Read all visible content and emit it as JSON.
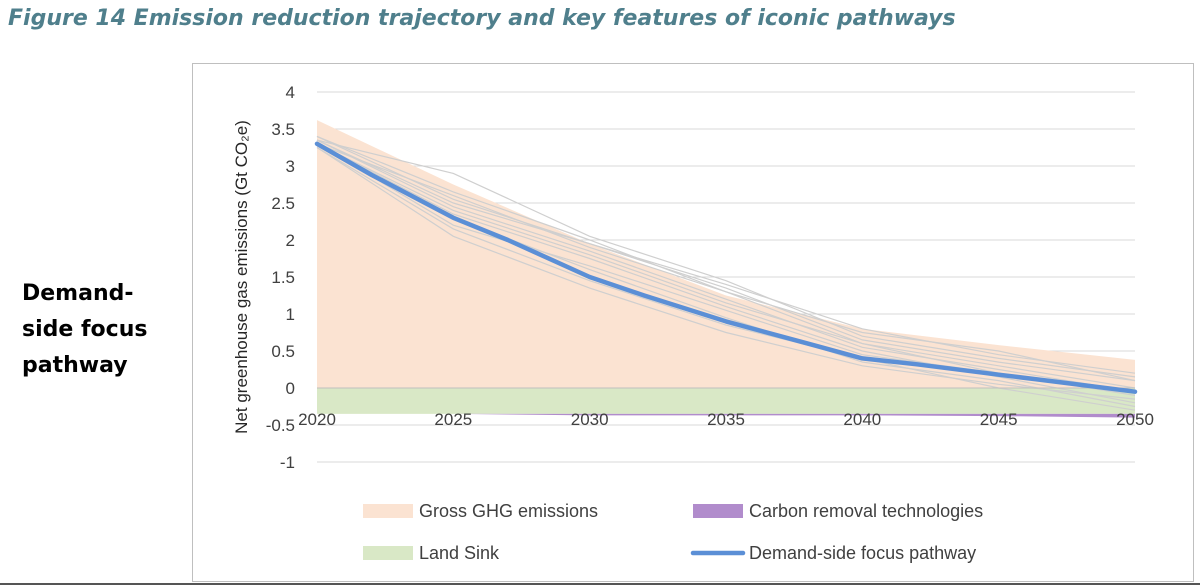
{
  "figure": {
    "title": "Figure 14 Emission reduction trajectory and key features of iconic pathways",
    "side_label_lines": [
      "Demand-",
      "side focus",
      "pathway"
    ]
  },
  "chart_data": {
    "type": "area",
    "title": "",
    "xlabel": "",
    "ylabel": "Net greenhouse gas emissions (Gt CO₂e)",
    "xlim": [
      2020,
      2050
    ],
    "ylim": [
      -1,
      4
    ],
    "y_ticks": [
      4,
      3.5,
      3,
      2.5,
      2,
      1.5,
      1,
      0.5,
      0,
      -0.5,
      -1
    ],
    "y_tick_labels": [
      "4",
      "3.5",
      "3",
      "2.5",
      "2",
      "1.5",
      "1",
      "0.5",
      "0",
      "-0.5",
      "-1"
    ],
    "x_ticks": [
      2020,
      2025,
      2030,
      2035,
      2040,
      2045,
      2050
    ],
    "x_tick_labels": [
      "2020",
      "2025",
      "2030",
      "2035",
      "2040",
      "2045",
      "2050"
    ],
    "grid": "horizontal",
    "legend_position": "bottom",
    "legend": [
      {
        "label": "Gross GHG emissions",
        "color": "#fbe3d2",
        "kind": "patch"
      },
      {
        "label": "Carbon removal technologies",
        "color": "#b18ccc",
        "kind": "patch"
      },
      {
        "label": "Land Sink",
        "color": "#d9e8c6",
        "kind": "patch"
      },
      {
        "label": "Demand-side focus pathway",
        "color": "#5b8fd6",
        "kind": "line"
      }
    ],
    "series": [
      {
        "name": "Gross GHG emissions",
        "x": [
          2020,
          2025,
          2030,
          2035,
          2040,
          2045,
          2050
        ],
        "values": [
          3.62,
          2.75,
          1.95,
          1.25,
          0.8,
          0.58,
          0.38
        ]
      },
      {
        "name": "Land Sink",
        "x": [
          2020,
          2025,
          2030,
          2035,
          2040,
          2045,
          2050
        ],
        "values": [
          -0.35,
          -0.35,
          -0.35,
          -0.35,
          -0.35,
          -0.35,
          -0.35
        ]
      },
      {
        "name": "Carbon removal technologies",
        "x": [
          2020,
          2025,
          2030,
          2035,
          2040,
          2045,
          2050
        ],
        "values": [
          -0.35,
          -0.35,
          -0.37,
          -0.37,
          -0.37,
          -0.38,
          -0.4
        ]
      },
      {
        "name": "Demand-side focus pathway",
        "x": [
          2020,
          2022,
          2025,
          2027,
          2030,
          2032,
          2035,
          2038,
          2040,
          2042,
          2045,
          2047,
          2050
        ],
        "values": [
          3.3,
          2.88,
          2.3,
          2.0,
          1.5,
          1.25,
          0.9,
          0.6,
          0.4,
          0.32,
          0.18,
          0.09,
          -0.05
        ]
      }
    ],
    "background_pathways": [
      [
        3.4,
        2.55,
        1.95,
        1.35,
        0.65,
        0.35,
        0.1
      ],
      [
        3.35,
        2.45,
        1.85,
        1.2,
        0.55,
        0.25,
        -0.05
      ],
      [
        3.3,
        2.2,
        1.65,
        1.05,
        0.45,
        0.2,
        -0.1
      ],
      [
        3.25,
        2.05,
        1.35,
        0.75,
        0.3,
        0.05,
        -0.15
      ],
      [
        3.35,
        2.9,
        2.05,
        1.45,
        0.7,
        0.4,
        0.15
      ],
      [
        3.3,
        2.6,
        1.9,
        1.3,
        0.6,
        0.3,
        0.0
      ],
      [
        3.3,
        2.35,
        1.75,
        1.1,
        0.5,
        0.15,
        -0.2
      ],
      [
        3.35,
        2.5,
        1.95,
        1.4,
        0.8,
        0.45,
        0.2
      ],
      [
        3.3,
        2.3,
        1.6,
        0.95,
        0.35,
        0.1,
        -0.25
      ],
      [
        3.4,
        2.65,
        2.0,
        1.3,
        0.75,
        0.5,
        0.1
      ],
      [
        3.3,
        2.4,
        1.8,
        1.15,
        0.6,
        0.2,
        -0.05
      ],
      [
        3.25,
        2.15,
        1.45,
        0.85,
        0.4,
        0.0,
        -0.3
      ]
    ]
  }
}
